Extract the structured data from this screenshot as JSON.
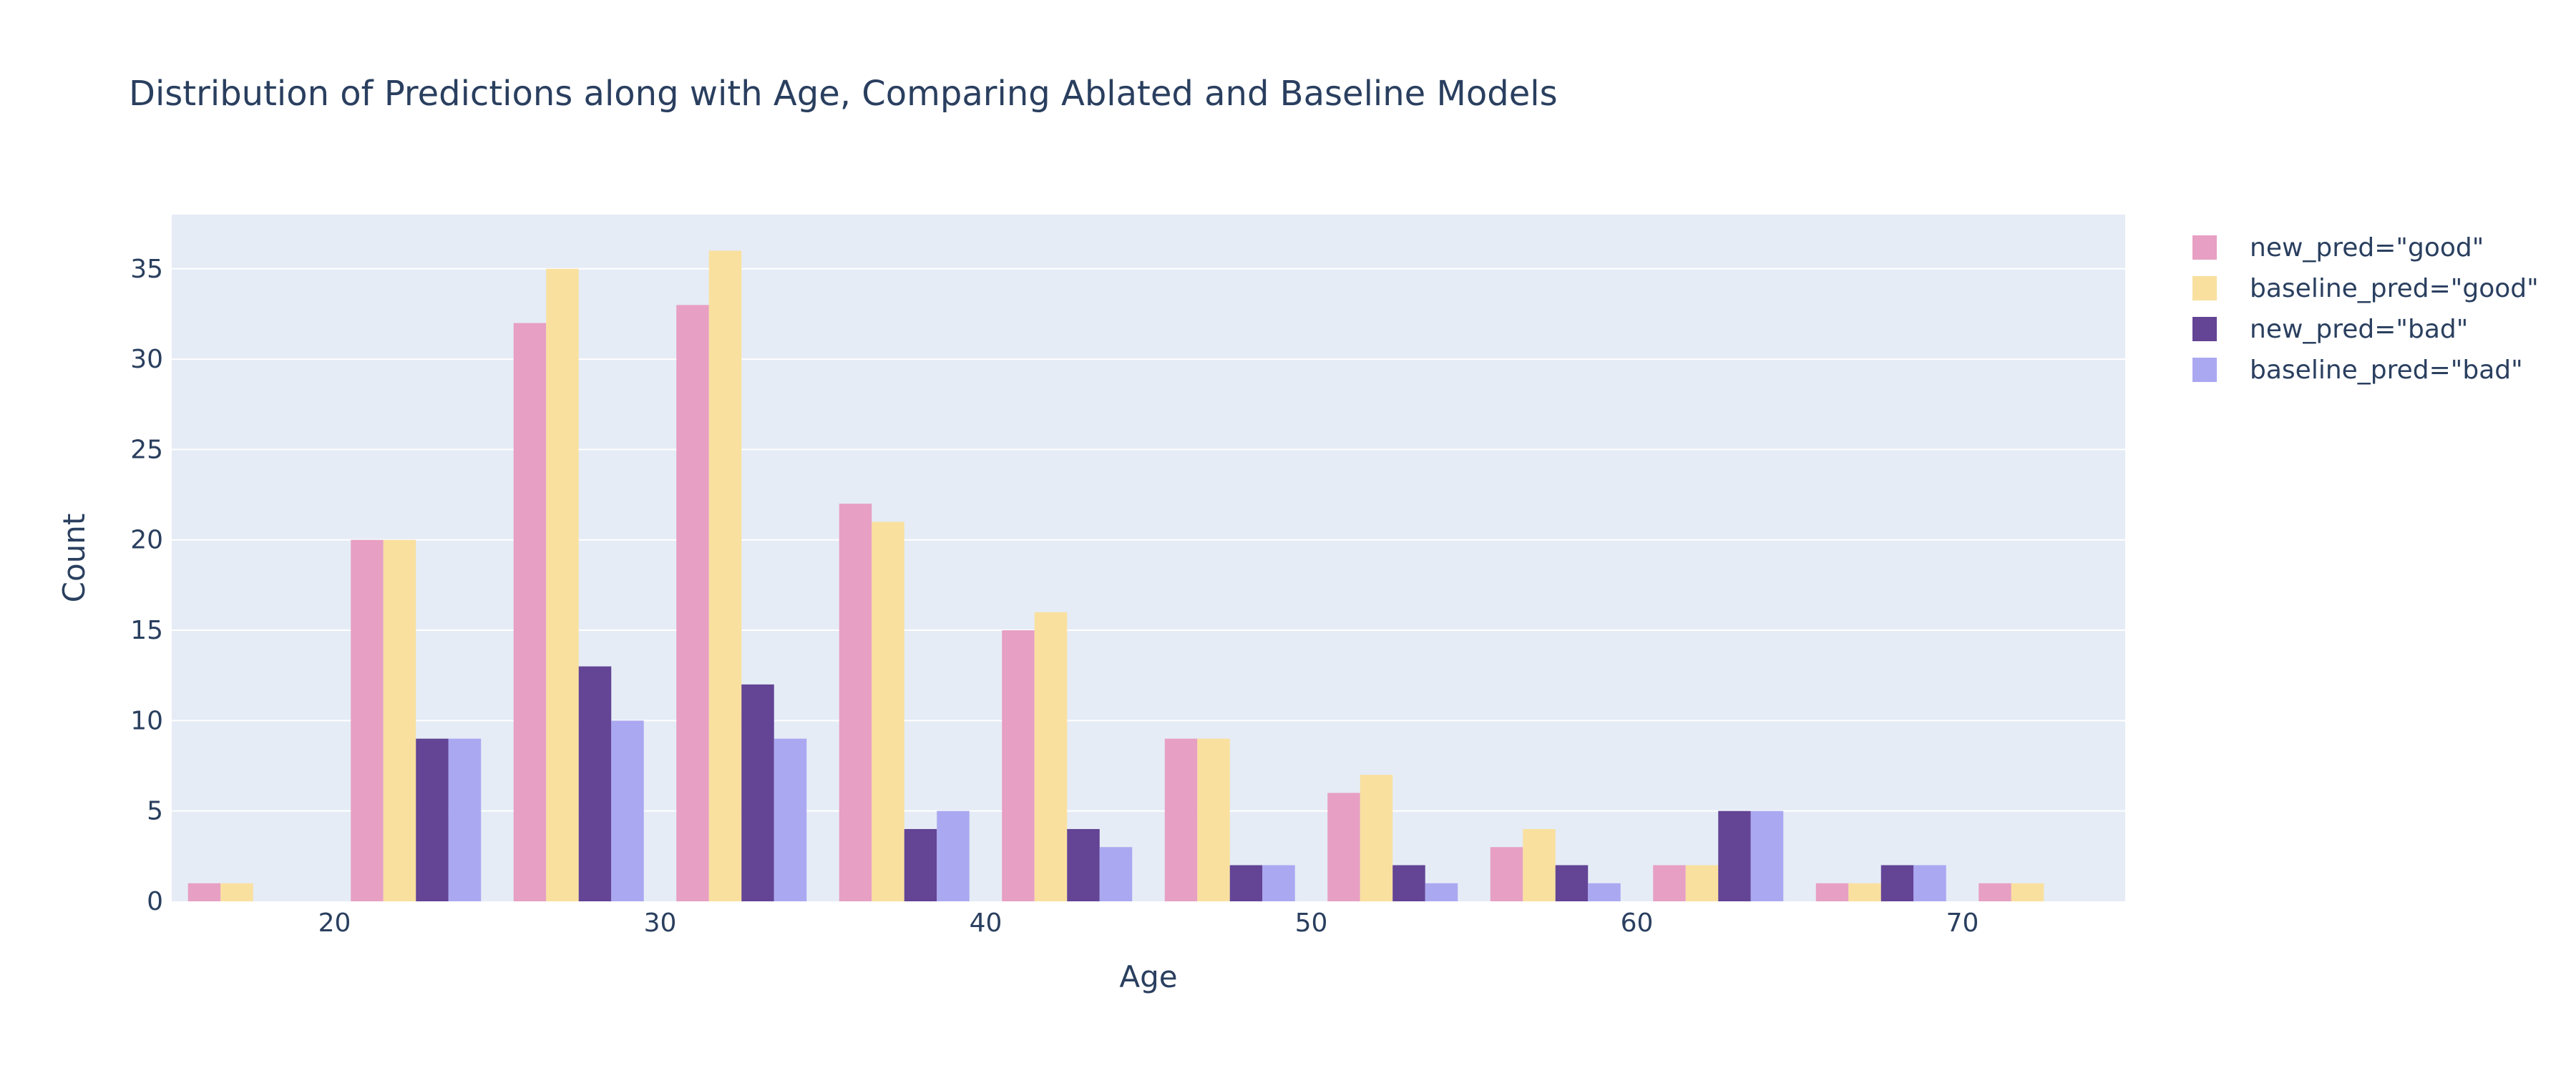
{
  "chart_data": {
    "type": "bar",
    "title": "Distribution of Predictions along with Age, Comparing Ablated and Baseline Models",
    "xlabel": "Age",
    "ylabel": "Count",
    "bin_size": 5,
    "bin_starts": [
      15,
      20,
      25,
      30,
      35,
      40,
      45,
      50,
      55,
      60,
      65,
      70
    ],
    "xlim": [
      15,
      75
    ],
    "ylim": [
      0,
      38
    ],
    "xticks": [
      20,
      30,
      40,
      50,
      60,
      70
    ],
    "yticks": [
      0,
      5,
      10,
      15,
      20,
      25,
      30,
      35
    ],
    "grid": true,
    "legend_position": "top-right",
    "series": [
      {
        "name": "new_pred=\"good\"",
        "color": "#e79fc3",
        "values": [
          1,
          20,
          32,
          33,
          22,
          15,
          9,
          6,
          3,
          2,
          1,
          1
        ]
      },
      {
        "name": "baseline_pred=\"good\"",
        "color": "#f9e09e",
        "values": [
          1,
          20,
          35,
          36,
          21,
          16,
          9,
          7,
          4,
          2,
          1,
          1
        ]
      },
      {
        "name": "new_pred=\"bad\"",
        "color": "#634495",
        "values": [
          0,
          9,
          13,
          12,
          4,
          4,
          2,
          2,
          2,
          5,
          2,
          0
        ]
      },
      {
        "name": "baseline_pred=\"bad\"",
        "color": "#aba8f2",
        "values": [
          0,
          9,
          10,
          9,
          5,
          3,
          2,
          1,
          1,
          5,
          2,
          0
        ]
      }
    ],
    "colors": {
      "plot_bg": "#e5ecf6",
      "grid": "#ffffff",
      "text": "#2a3f5f"
    }
  }
}
